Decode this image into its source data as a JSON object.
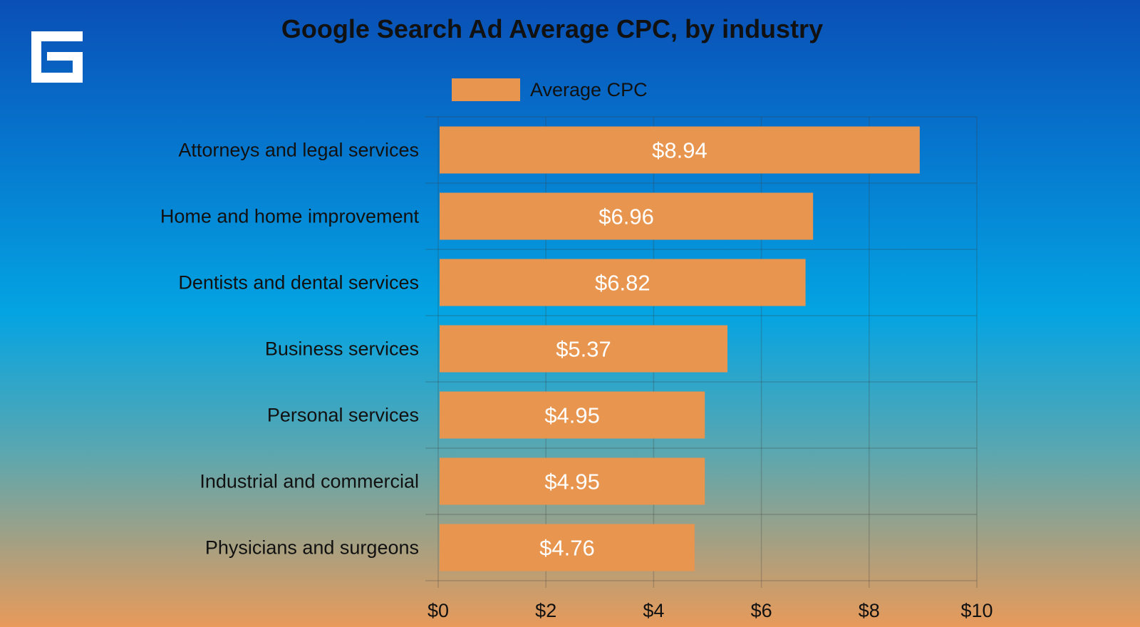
{
  "chart_data": {
    "type": "bar",
    "orientation": "horizontal",
    "title": "Google Search Ad Average CPC, by industry",
    "categories": [
      "Attorneys and legal services",
      "Home and home improvement",
      "Dentists and dental services",
      "Business services",
      "Personal services",
      "Industrial and commercial",
      "Physicians and surgeons"
    ],
    "series": [
      {
        "name": "Average CPC",
        "values": [
          8.94,
          6.96,
          6.82,
          5.37,
          4.95,
          4.95,
          4.76
        ],
        "data_labels": [
          "$8.94",
          "$6.96",
          "$6.82",
          "$5.37",
          "$4.95",
          "$4.95",
          "$4.76"
        ],
        "color": "#e8954f"
      }
    ],
    "xlim": [
      0,
      10
    ],
    "x_ticks": [
      0,
      2,
      4,
      6,
      8,
      10
    ],
    "x_tick_labels": [
      "$0",
      "$2",
      "$4",
      "$6",
      "$8",
      "$10"
    ],
    "xlabel": "",
    "ylabel": "",
    "grid": true,
    "legend_position": "top"
  },
  "colors": {
    "bar": "#e8954f",
    "grid": "rgba(60,60,60,0.25)",
    "logo": "#ffffff"
  },
  "logo_icon": "stacked-e-logo"
}
